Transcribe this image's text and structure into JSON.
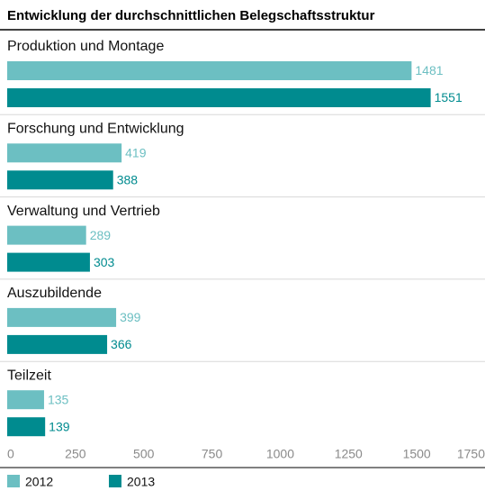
{
  "chart_data": {
    "type": "bar",
    "orientation": "horizontal",
    "title": "Entwicklung der durchschnittlichen Belegschaftsstruktur",
    "categories": [
      "Produktion und Montage",
      "Forschung und Entwicklung",
      "Verwaltung und Vertrieb",
      "Auszubildende",
      "Teilzeit"
    ],
    "series": [
      {
        "name": "2012",
        "color": "#6cbfc2",
        "values": [
          1481,
          419,
          289,
          399,
          135
        ]
      },
      {
        "name": "2013",
        "color": "#008b8f",
        "values": [
          1551,
          388,
          303,
          366,
          139
        ]
      }
    ],
    "xlim": [
      0,
      1750
    ],
    "xticks": [
      0,
      250,
      500,
      750,
      1000,
      1250,
      1500,
      1750
    ],
    "grid": false
  }
}
